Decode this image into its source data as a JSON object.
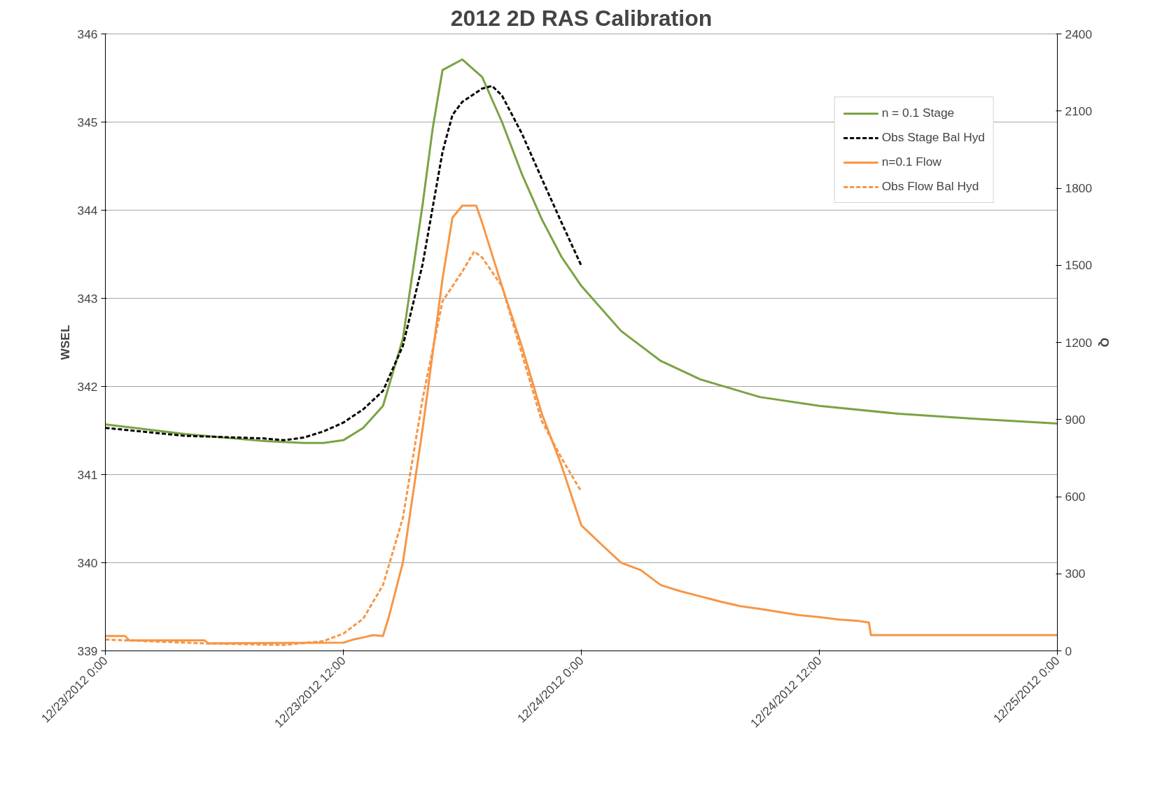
{
  "chart_data": {
    "type": "line",
    "title": "2012 2D RAS Calibration",
    "ylabel": "WSEL",
    "y2label": "Q",
    "xlim": [
      "2012-12-23T00:00",
      "2012-12-25T00:00"
    ],
    "xticks": [
      {
        "value": "2012-12-23T00:00",
        "label": "12/23/2012 0:00"
      },
      {
        "value": "2012-12-23T12:00",
        "label": "12/23/2012 12:00"
      },
      {
        "value": "2012-12-24T00:00",
        "label": "12/24/2012 0:00"
      },
      {
        "value": "2012-12-24T12:00",
        "label": "12/24/2012 12:00"
      },
      {
        "value": "2012-12-25T00:00",
        "label": "12/25/2012 0:00"
      }
    ],
    "ylim": [
      339,
      346
    ],
    "yticks": [
      339,
      340,
      341,
      342,
      343,
      344,
      345,
      346
    ],
    "y2lim": [
      0,
      2400
    ],
    "y2ticks": [
      0,
      300,
      600,
      900,
      1200,
      1500,
      1800,
      2100,
      2400
    ],
    "grid": "y",
    "legend": "top right",
    "series": [
      {
        "name": "n = 0.1 Stage",
        "color": "#7aa343",
        "line_style": "solid",
        "x": [
          "2012-12-23T00:00",
          "2012-12-23T04:00",
          "2012-12-23T08:00",
          "2012-12-23T10:00",
          "2012-12-23T11:00",
          "2012-12-23T12:00",
          "2012-12-23T13:00",
          "2012-12-23T14:00",
          "2012-12-23T15:00",
          "2012-12-23T16:00",
          "2012-12-23T16:30",
          "2012-12-23T17:00",
          "2012-12-23T18:00",
          "2012-12-23T19:00",
          "2012-12-23T20:00",
          "2012-12-23T21:00",
          "2012-12-23T22:00",
          "2012-12-23T23:00",
          "2012-12-24T00:00",
          "2012-12-24T02:00",
          "2012-12-24T04:00",
          "2012-12-24T06:00",
          "2012-12-24T09:00",
          "2012-12-24T12:00",
          "2012-12-24T16:00",
          "2012-12-24T20:00",
          "2012-12-25T00:00"
        ],
        "values": [
          341.57,
          341.46,
          341.38,
          341.36,
          341.36,
          341.39,
          341.53,
          341.78,
          342.54,
          344.07,
          344.92,
          345.59,
          345.71,
          345.51,
          345.0,
          344.41,
          343.9,
          343.47,
          343.14,
          342.63,
          342.29,
          342.08,
          341.88,
          341.78,
          341.69,
          341.63,
          341.58
        ]
      },
      {
        "name": "Obs Stage Bal Hyd",
        "color": "#000000",
        "line_style": "dashed",
        "x": [
          "2012-12-23T00:00",
          "2012-12-23T04:00",
          "2012-12-23T08:00",
          "2012-12-23T09:00",
          "2012-12-23T10:00",
          "2012-12-23T11:00",
          "2012-12-23T12:00",
          "2012-12-23T13:00",
          "2012-12-23T14:00",
          "2012-12-23T15:00",
          "2012-12-23T16:00",
          "2012-12-23T17:00",
          "2012-12-23T17:30",
          "2012-12-23T18:00",
          "2012-12-23T19:00",
          "2012-12-23T19:30",
          "2012-12-23T20:00",
          "2012-12-23T21:00",
          "2012-12-23T22:00",
          "2012-12-23T23:00",
          "2012-12-24T00:00"
        ],
        "values": [
          341.53,
          341.44,
          341.41,
          341.39,
          341.42,
          341.49,
          341.59,
          341.74,
          341.95,
          342.46,
          343.39,
          344.66,
          345.08,
          345.23,
          345.38,
          345.41,
          345.3,
          344.87,
          344.36,
          343.86,
          343.37
        ]
      },
      {
        "name": "n=0.1 Flow",
        "color": "#f79646",
        "line_style": "solid",
        "axis": "y2",
        "x": [
          "2012-12-23T00:00",
          "2012-12-23T01:00",
          "2012-12-23T01:12",
          "2012-12-23T05:00",
          "2012-12-23T05:12",
          "2012-12-23T12:00",
          "2012-12-23T12:30",
          "2012-12-23T13:00",
          "2012-12-23T13:30",
          "2012-12-23T14:00",
          "2012-12-23T14:18",
          "2012-12-23T15:00",
          "2012-12-23T16:00",
          "2012-12-23T16:30",
          "2012-12-23T17:00",
          "2012-12-23T17:30",
          "2012-12-23T18:00",
          "2012-12-23T18:42",
          "2012-12-23T19:00",
          "2012-12-23T20:00",
          "2012-12-23T21:00",
          "2012-12-23T22:00",
          "2012-12-23T23:00",
          "2012-12-24T00:00",
          "2012-12-24T01:00",
          "2012-12-24T02:00",
          "2012-12-24T03:00",
          "2012-12-24T04:00",
          "2012-12-24T05:00",
          "2012-12-24T06:00",
          "2012-12-24T07:00",
          "2012-12-24T08:00",
          "2012-12-24T09:00",
          "2012-12-24T10:00",
          "2012-12-24T11:00",
          "2012-12-24T12:00",
          "2012-12-24T13:00",
          "2012-12-24T14:00",
          "2012-12-24T14:30",
          "2012-12-24T14:36",
          "2012-12-25T00:00"
        ],
        "values": [
          58,
          58,
          41,
          41,
          29,
          32,
          44,
          52,
          61,
          58,
          134,
          343,
          866,
          1156,
          1447,
          1685,
          1732,
          1732,
          1665,
          1418,
          1185,
          924,
          721,
          488,
          415,
          343,
          314,
          256,
          232,
          212,
          192,
          174,
          163,
          151,
          139,
          131,
          122,
          116,
          110,
          61,
          61
        ]
      },
      {
        "name": "Obs Flow Bal Hyd",
        "color": "#f79646",
        "line_style": "dashed",
        "axis": "y2",
        "x": [
          "2012-12-23T00:00",
          "2012-12-23T05:00",
          "2012-12-23T09:00",
          "2012-12-23T11:00",
          "2012-12-23T12:00",
          "2012-12-23T13:00",
          "2012-12-23T14:00",
          "2012-12-23T15:00",
          "2012-12-23T16:00",
          "2012-12-23T17:00",
          "2012-12-23T18:00",
          "2012-12-23T18:36",
          "2012-12-23T19:00",
          "2012-12-23T20:00",
          "2012-12-23T21:00",
          "2012-12-23T22:00",
          "2012-12-23T23:00",
          "2012-12-24T00:00"
        ],
        "values": [
          44,
          29,
          23,
          38,
          67,
          125,
          256,
          517,
          982,
          1360,
          1476,
          1554,
          1530,
          1418,
          1156,
          895,
          750,
          619
        ]
      }
    ]
  }
}
